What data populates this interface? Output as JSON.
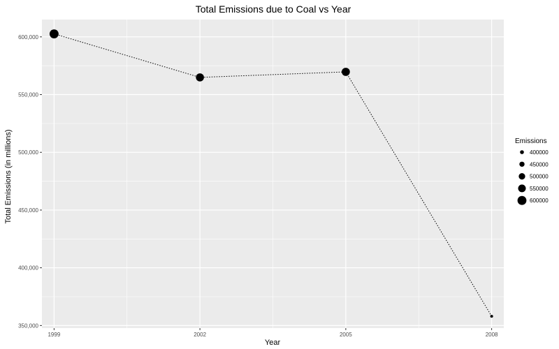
{
  "chart_data": {
    "type": "line",
    "title": "Total Emissions due to Coal vs Year",
    "xlabel": "Year",
    "ylabel": "Total Emissions (in millions)",
    "x": [
      1999,
      2002,
      2005,
      2008
    ],
    "x_tick_labels": [
      "1999",
      "2002",
      "2005",
      "2008"
    ],
    "y_tick_labels": [
      "350,000",
      "400,000",
      "450,000",
      "500,000",
      "550,000",
      "600,000"
    ],
    "y_ticks": [
      350000,
      400000,
      450000,
      500000,
      550000,
      600000
    ],
    "xlim": [
      1998.75,
      2008.25
    ],
    "ylim": [
      347800,
      615000
    ],
    "series": [
      {
        "values": [
          602600,
          564900,
          569700,
          358000
        ]
      }
    ],
    "point_size_mapped_to": "Emissions",
    "line_style": "dotted",
    "grid": true,
    "legend": {
      "title": "Emissions",
      "placement": "right",
      "items": [
        {
          "label": "400000",
          "value": 400000
        },
        {
          "label": "450000",
          "value": 450000
        },
        {
          "label": "500000",
          "value": 500000
        },
        {
          "label": "550000",
          "value": 550000
        },
        {
          "label": "600000",
          "value": 600000
        }
      ]
    },
    "colors": {
      "panel": "#ebebeb",
      "grid": "#ffffff",
      "points": "#000000"
    }
  }
}
